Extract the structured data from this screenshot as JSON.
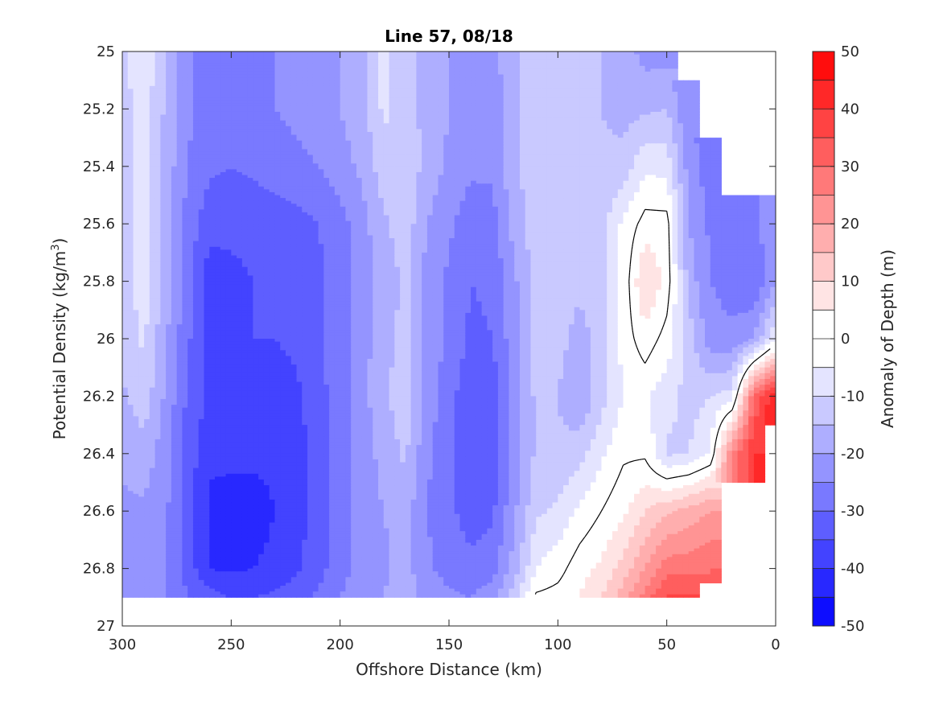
{
  "chart_data": {
    "type": "contourf",
    "title": "Line 57, 08/18",
    "xlabel": "Offshore Distance (km)",
    "ylabel_main": "Potential Density (kg/m",
    "ylabel_sup": "3",
    "ylabel_close": ")",
    "xlim": [
      300,
      0
    ],
    "x_reversed": true,
    "ylim": [
      25,
      27
    ],
    "y_reversed": true,
    "xticks": [
      "300",
      "250",
      "200",
      "150",
      "100",
      "50",
      "0"
    ],
    "yticks": [
      "25",
      "25.2",
      "25.4",
      "25.6",
      "25.8",
      "26",
      "26.2",
      "26.4",
      "26.6",
      "26.8",
      "27"
    ],
    "colorbar": {
      "label": "Anomaly of Depth (m)",
      "range": [
        -50,
        50
      ],
      "step": 5,
      "ticks": [
        "50",
        "40",
        "30",
        "20",
        "10",
        "0",
        "-10",
        "-20",
        "-30",
        "-40",
        "-50"
      ]
    },
    "contour_line_level": 0,
    "grid": false,
    "colors": {
      "negative_max": "#0000ff",
      "positive_max": "#ff0000",
      "zero": "#ffffff",
      "contour_line": "#000000",
      "axes": "#262626"
    },
    "column_profiles": [
      {
        "x": 300,
        "values": [
          -12,
          -12,
          -12,
          -12,
          -12,
          -13,
          -16,
          -19,
          -21,
          -23,
          -25
        ]
      },
      {
        "x": 290,
        "values": [
          -6,
          -7,
          -8,
          -8,
          -8,
          -9,
          -12,
          -17,
          -21,
          -22,
          -24
        ]
      },
      {
        "x": 280,
        "values": [
          -15,
          -16,
          -17,
          -17,
          -18,
          -19,
          -21,
          -23,
          -24,
          -25,
          -25
        ]
      },
      {
        "x": 270,
        "values": [
          -24,
          -24,
          -25,
          -27,
          -28,
          -29,
          -31,
          -32,
          -33,
          -32,
          -30
        ]
      },
      {
        "x": 260,
        "values": [
          -27,
          -27,
          -29,
          -33,
          -38,
          -37,
          -36,
          -39,
          -41,
          -40,
          -33
        ]
      },
      {
        "x": 250,
        "values": [
          -28,
          -28,
          -30,
          -34,
          -36,
          -36,
          -36,
          -39,
          -42,
          -41,
          -35
        ]
      },
      {
        "x": 240,
        "values": [
          -27,
          -27,
          -29,
          -34,
          -35,
          -35,
          -37,
          -39,
          -42,
          -40,
          -35
        ]
      },
      {
        "x": 230,
        "values": [
          -25,
          -25,
          -27,
          -33,
          -34,
          -35,
          -37,
          -39,
          -40,
          -39,
          -34
        ]
      },
      {
        "x": 220,
        "values": [
          -24,
          -24,
          -26,
          -32,
          -33,
          -34,
          -36,
          -37,
          -37,
          -36,
          -32
        ]
      },
      {
        "x": 210,
        "values": [
          -22,
          -23,
          -25,
          -30,
          -31,
          -31,
          -32,
          -33,
          -33,
          -32,
          -29
        ]
      },
      {
        "x": 200,
        "values": [
          -20,
          -20,
          -22,
          -27,
          -28,
          -27,
          -27,
          -28,
          -28,
          -27,
          -25
        ]
      },
      {
        "x": 190,
        "values": [
          -17,
          -17,
          -19,
          -22,
          -23,
          -22,
          -22,
          -23,
          -23,
          -23,
          -22
        ]
      },
      {
        "x": 180,
        "values": [
          -9,
          -9,
          -12,
          -16,
          -18,
          -17,
          -16,
          -18,
          -20,
          -21,
          -20
        ]
      },
      {
        "x": 170,
        "values": [
          -12,
          -12,
          -11,
          -12,
          -14,
          -13,
          -12,
          -14,
          -18,
          -18,
          -17
        ]
      },
      {
        "x": 160,
        "values": [
          -17,
          -17,
          -17,
          -20,
          -22,
          -22,
          -22,
          -24,
          -25,
          -24,
          -22
        ]
      },
      {
        "x": 150,
        "values": [
          -20,
          -20,
          -21,
          -24,
          -26,
          -26,
          -28,
          -29,
          -29,
          -27,
          -24
        ]
      },
      {
        "x": 140,
        "values": [
          -23,
          -23,
          -24,
          -28,
          -30,
          -31,
          -34,
          -35,
          -32,
          -29,
          -25
        ]
      },
      {
        "x": 130,
        "values": [
          -22,
          -23,
          -24,
          -27,
          -29,
          -30,
          -33,
          -34,
          -31,
          -27,
          -22
        ]
      },
      {
        "x": 120,
        "values": [
          -16,
          -16,
          -16,
          -18,
          -21,
          -22,
          -22,
          -23,
          -21,
          -18,
          -12
        ]
      },
      {
        "x": 110,
        "values": [
          -12,
          -12,
          -12,
          -12,
          -13,
          -13,
          -14,
          -14,
          -11,
          -5,
          1
        ]
      },
      {
        "x": 100,
        "values": [
          -12,
          -12,
          -12,
          -12,
          -13,
          -13,
          -15,
          -14,
          -9,
          -2,
          2
        ]
      },
      {
        "x": 90,
        "values": [
          -13,
          -13,
          -13,
          -13,
          -14,
          -17,
          -20,
          -12,
          -4,
          3,
          5
        ]
      },
      {
        "x": 80,
        "values": [
          -15,
          -15,
          -14,
          -12,
          -11,
          -13,
          -12,
          -6,
          0,
          6,
          10
        ]
      },
      {
        "x": 70,
        "values": [
          -17,
          -17,
          -13,
          -4,
          -4,
          -3,
          -5,
          -1,
          4,
          12,
          18
        ]
      },
      {
        "x": 60,
        "values": [
          -22,
          -16,
          -6,
          2,
          11,
          3,
          -4,
          -1,
          10,
          20,
          27
        ]
      },
      {
        "x": 50,
        "values": [
          -22,
          -15,
          -7,
          2,
          3,
          -2,
          -8,
          -11,
          14,
          28,
          36
        ]
      },
      {
        "x": 40,
        "values": [
          null,
          -25,
          -22,
          -20,
          -17,
          -12,
          -12,
          -10,
          17,
          28,
          36
        ]
      },
      {
        "x": 30,
        "values": [
          null,
          null,
          -28,
          -26,
          -25,
          -23,
          -10,
          -5,
          20,
          30,
          null
        ]
      },
      {
        "x": 20,
        "values": [
          null,
          null,
          null,
          -27,
          -27,
          -24,
          -8,
          25,
          null,
          null,
          null
        ]
      },
      {
        "x": 10,
        "values": [
          null,
          null,
          null,
          -27,
          -30,
          -20,
          30,
          40,
          null,
          null,
          null
        ]
      },
      {
        "x": 0,
        "values": [
          null,
          null,
          null,
          -20,
          -20,
          -5,
          45,
          null,
          null,
          null,
          null
        ]
      }
    ],
    "profile_density_levels": [
      25.0,
      25.2,
      25.4,
      25.6,
      25.8,
      26.0,
      26.2,
      26.4,
      26.6,
      26.8,
      26.9
    ]
  }
}
